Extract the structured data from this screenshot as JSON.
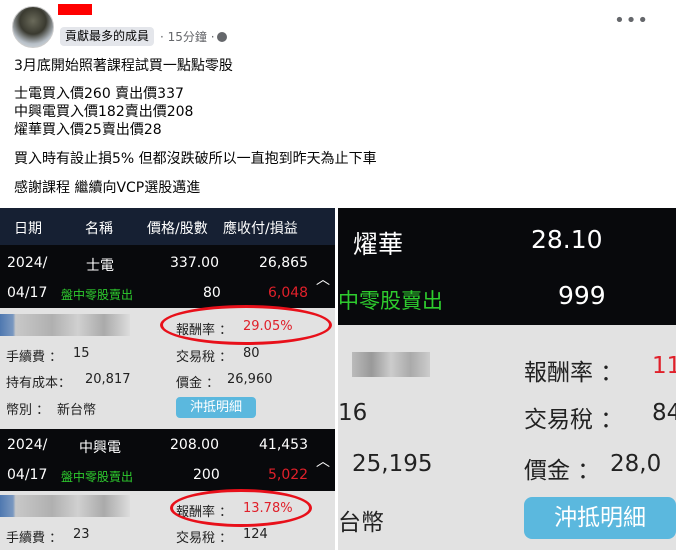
{
  "post": {
    "author_badge": "貢獻最多的成員",
    "time": "· 15分鐘 ·",
    "more_icon": "ellipsis-icon",
    "privacy_icon": "group-icon",
    "lines": [
      "3月底開始照著課程試買一點點零股",
      "士電買入價260 賣出價337",
      "中興電買入價182賣出價208",
      "燿華買入價25賣出價28",
      "買入時有設止損5% 但都沒跌破所以一直抱到昨天為止下車",
      "感謝課程 繼續向VCP選股邁進"
    ]
  },
  "left_image": {
    "headers": [
      "日期",
      "名稱",
      "價格/股數",
      "應收付/損益"
    ],
    "trades": [
      {
        "date1": "2024/",
        "date2": "04/17",
        "name": "士電",
        "type": "盤中零股賣出",
        "price": "337.00",
        "shares": "80",
        "amount": "26,865",
        "pnl": "6,048",
        "roi_label": "報酬率 ：",
        "roi": "29.05%",
        "fee_label": "手續費 ：",
        "fee": "15",
        "tax_label": "交易稅 ：",
        "tax": "80",
        "cost_label": "持有成本：",
        "cost": "20,817",
        "value_label": "價金 ：",
        "value": "26,960",
        "currency_label": "幣別 ：",
        "currency": "新台幣",
        "detail_button": "沖抵明細"
      },
      {
        "date1": "2024/",
        "date2": "04/17",
        "name": "中興電",
        "type": "盤中零股賣出",
        "price": "208.00",
        "shares": "200",
        "amount": "41,453",
        "pnl": "5,022",
        "roi_label": "報酬率 ：",
        "roi": "13.78%",
        "fee_label": "手續費 ：",
        "fee": "23",
        "tax_label": "交易稅 ：",
        "tax": "124"
      }
    ]
  },
  "right_image": {
    "name": "燿華",
    "type": "中零股賣出",
    "price": "28.10",
    "shares": "999",
    "roi_label": "報酬率 ：",
    "roi": "11",
    "fee_partial": "16",
    "tax_label": "交易稅 ：",
    "tax": "84",
    "cost": "25,195",
    "value_label": "價金 ：",
    "value": "28,0",
    "currency": "台幣",
    "detail_button": "沖抵明細"
  },
  "colors": {
    "header": "#162033",
    "row": "#08090c",
    "panel": "#e2e2e2",
    "green": "#2ecc2e",
    "red": "#e0202a",
    "button": "#5bb8de",
    "highlight": "#e8101a"
  }
}
